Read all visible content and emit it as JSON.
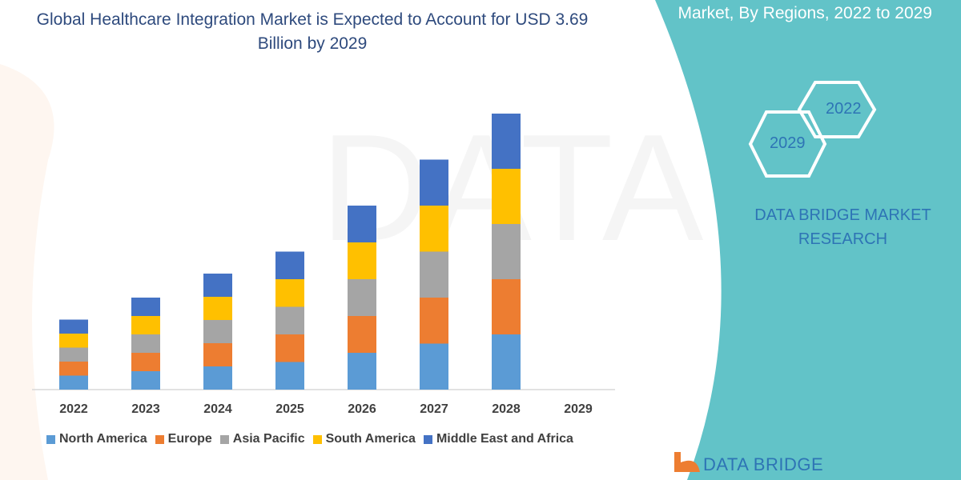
{
  "header": {
    "title": "Global Healthcare Integration Market is Expected to Account for USD 3.69 Billion by 2029",
    "subtitle": "Market, By Regions, 2022 to 2029"
  },
  "side_panel": {
    "hex_1": "2022",
    "hex_2": "2029",
    "brand": "DATA BRIDGE MARKET RESEARCH",
    "logo_text": "DATA BRIDGE",
    "panel_color": "#62C3C8"
  },
  "chart_data": {
    "type": "bar",
    "stacked": true,
    "categories": [
      "2022",
      "2023",
      "2024",
      "2025",
      "2026",
      "2027",
      "2028",
      "2029"
    ],
    "series": [
      {
        "name": "North America",
        "color": "#5B9BD5",
        "values": [
          17.5,
          23,
          29,
          34.5,
          46,
          57.5,
          69,
          null
        ]
      },
      {
        "name": "Europe",
        "color": "#ED7D31",
        "values": [
          17.5,
          23,
          29,
          34.5,
          46,
          57.5,
          69,
          null
        ]
      },
      {
        "name": "Asia Pacific",
        "color": "#A5A5A5",
        "values": [
          17.5,
          23,
          29,
          34.5,
          46,
          57.5,
          69,
          null
        ]
      },
      {
        "name": "South America",
        "color": "#FFC000",
        "values": [
          17.5,
          23,
          29,
          34.5,
          46,
          57.5,
          69,
          null
        ]
      },
      {
        "name": "Middle East and Africa",
        "color": "#4472C4",
        "values": [
          17.5,
          23,
          29,
          34.5,
          46,
          57.5,
          69,
          null
        ]
      }
    ],
    "title": "Global Healthcare Integration Market is Expected to Account for USD 3.69 Billion by 2029",
    "xlabel": "",
    "ylabel": "",
    "y_axis_shown": false,
    "grid": false,
    "legend": "bottom"
  }
}
